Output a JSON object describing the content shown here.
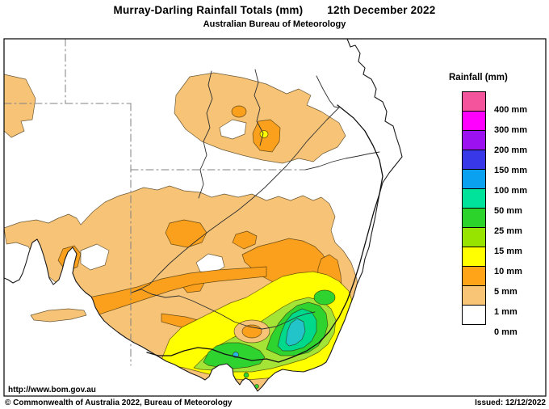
{
  "page": {
    "title_main": "Murray-Darling Rainfall Totals (mm)",
    "title_date": "12th December 2022",
    "subtitle": "Australian Bureau of Meteorology"
  },
  "legend": {
    "title": "Rainfall (mm)",
    "bands": [
      {
        "color": "#F4549B",
        "boundary_label": "400 mm"
      },
      {
        "color": "#FF00FF",
        "boundary_label": "300 mm"
      },
      {
        "color": "#9B11F0",
        "boundary_label": "200 mm"
      },
      {
        "color": "#3838E8",
        "boundary_label": "150 mm"
      },
      {
        "color": "#0AA2F0",
        "boundary_label": "100 mm"
      },
      {
        "color": "#00E39A",
        "boundary_label": "50 mm"
      },
      {
        "color": "#2BD32B",
        "boundary_label": "25 mm"
      },
      {
        "color": "#97E400",
        "boundary_label": "15 mm"
      },
      {
        "color": "#FFFF00",
        "boundary_label": "10 mm"
      },
      {
        "color": "#FFA318",
        "boundary_label": "5 mm"
      },
      {
        "color": "#F8C577",
        "boundary_label": "1 mm"
      },
      {
        "color": "#FFFFFF",
        "boundary_label": "0 mm"
      }
    ],
    "scale_values_mm": [
      400,
      300,
      200,
      150,
      100,
      50,
      25,
      15,
      10,
      5,
      1,
      0
    ]
  },
  "footer": {
    "url": "http://www.bom.gov.au",
    "copyright": "© Commonwealth of Australia 2022, Bureau of Meteorology",
    "issued": "Issued: 12/12/2022"
  },
  "map": {
    "palette": {
      "band_0_1": "#FFFFFF",
      "band_1_5": "#F7C477",
      "band_5_10": "#FAA01C",
      "band_10_15": "#FFFF00",
      "band_15_25": "#A4E436",
      "band_25_50": "#2FD32F",
      "band_50_100": "#00D88C",
      "band_100_150": "#22C3C9",
      "spot_100": "#29B7E8",
      "sea": "#FFFFFF",
      "coast": "#1A1A1A",
      "state_border": "#808080",
      "river": "#2F2F2F",
      "basin_boundary": "#111111"
    }
  }
}
